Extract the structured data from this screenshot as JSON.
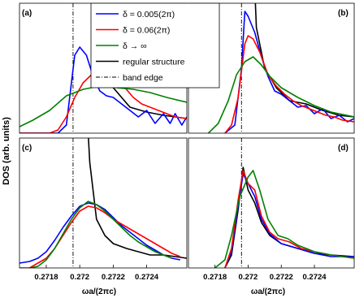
{
  "figure": {
    "ylabel": "DOS (arb. units)",
    "xlabel": "ωa/(2πc)"
  },
  "legend": {
    "position": "top-center",
    "entries": [
      {
        "label": "δ = 0.005(2π)",
        "color": "#0000ff",
        "style": "solid"
      },
      {
        "label": "δ = 0.06(2π)",
        "color": "#ff0000",
        "style": "solid"
      },
      {
        "label": "δ → ∞",
        "color": "#008000",
        "style": "solid"
      },
      {
        "label": "regular structure",
        "color": "#000000",
        "style": "solid"
      },
      {
        "label": "band edge",
        "color": "#000000",
        "style": "dashdot"
      }
    ]
  },
  "chart_data": [
    {
      "panel": "(a)",
      "type": "line",
      "xlim": [
        0.27164,
        0.27264
      ],
      "band_edge": 0.27196,
      "x_ticks": [],
      "y_ticks": [],
      "grid": false,
      "series": [
        {
          "name": "regular structure",
          "color": "#000000",
          "x": [
            0.27205,
            0.27207,
            0.27212,
            0.2722,
            0.2723,
            0.2724,
            0.2725,
            0.27264
          ],
          "y": [
            1.4,
            0.8,
            0.5,
            0.28,
            0.16,
            0.13,
            0.11,
            0.09
          ]
        },
        {
          "name": "δ = 0.005(2π)",
          "color": "#0000ff",
          "x": [
            0.27164,
            0.27187,
            0.27192,
            0.27197,
            0.272,
            0.27204,
            0.27208,
            0.27212,
            0.27216,
            0.2722,
            0.27225,
            0.2723,
            0.27235,
            0.2724,
            0.27245,
            0.2725,
            0.27254,
            0.27257,
            0.27261,
            0.27264
          ],
          "y": [
            0,
            0,
            0.05,
            0.48,
            0.53,
            0.48,
            0.35,
            0.26,
            0.23,
            0.22,
            0.18,
            0.14,
            0.1,
            0.14,
            0.06,
            0.12,
            0.06,
            0.12,
            0.05,
            0.1
          ]
        },
        {
          "name": "δ = 0.06(2π)",
          "color": "#ff0000",
          "x": [
            0.27164,
            0.27182,
            0.27187,
            0.27192,
            0.27197,
            0.27202,
            0.27207,
            0.27212,
            0.27217,
            0.27222,
            0.27227,
            0.27232,
            0.27237,
            0.27242,
            0.27247,
            0.27252,
            0.27257,
            0.27264
          ],
          "y": [
            0,
            0,
            0.02,
            0.1,
            0.22,
            0.31,
            0.36,
            0.37,
            0.36,
            0.33,
            0.28,
            0.22,
            0.18,
            0.16,
            0.14,
            0.12,
            0.1,
            0.09
          ]
        },
        {
          "name": "δ → ∞",
          "color": "#008000",
          "x": [
            0.27164,
            0.27172,
            0.27182,
            0.27192,
            0.27202,
            0.27212,
            0.27222,
            0.27232,
            0.27242,
            0.27252,
            0.27264
          ],
          "y": [
            0.04,
            0.08,
            0.14,
            0.23,
            0.27,
            0.29,
            0.28,
            0.27,
            0.25,
            0.22,
            0.19
          ]
        }
      ]
    },
    {
      "panel": "(b)",
      "type": "line",
      "xlim": [
        0.27164,
        0.27264
      ],
      "band_edge": 0.27196,
      "x_ticks": [],
      "y_ticks": [],
      "grid": false,
      "series": [
        {
          "name": "regular structure",
          "color": "#000000",
          "x": [
            0.27202,
            0.27205,
            0.2721,
            0.27217,
            0.27225,
            0.27235,
            0.27245,
            0.27255,
            0.27264
          ],
          "y": [
            1.4,
            0.65,
            0.4,
            0.28,
            0.2,
            0.18,
            0.14,
            0.11,
            0.1
          ]
        },
        {
          "name": "δ = 0.005(2π)",
          "color": "#0000ff",
          "x": [
            0.27186,
            0.27192,
            0.27196,
            0.27198,
            0.272,
            0.27204,
            0.27208,
            0.27212,
            0.27216,
            0.2722,
            0.27225,
            0.2723,
            0.27235,
            0.2724,
            0.27245,
            0.2725,
            0.27255,
            0.2726,
            0.27264
          ],
          "y": [
            0,
            0.05,
            0.4,
            0.75,
            0.72,
            0.62,
            0.47,
            0.35,
            0.26,
            0.24,
            0.2,
            0.16,
            0.17,
            0.12,
            0.15,
            0.09,
            0.11,
            0.07,
            0.09
          ]
        },
        {
          "name": "δ = 0.06(2π)",
          "color": "#ff0000",
          "x": [
            0.27186,
            0.2719,
            0.27194,
            0.27198,
            0.272,
            0.27203,
            0.27207,
            0.27212,
            0.27217,
            0.27222,
            0.27227,
            0.27232,
            0.27237,
            0.27242,
            0.27247,
            0.27252,
            0.27257,
            0.27264
          ],
          "y": [
            0,
            0.05,
            0.22,
            0.55,
            0.6,
            0.58,
            0.5,
            0.36,
            0.29,
            0.24,
            0.2,
            0.17,
            0.15,
            0.13,
            0.11,
            0.1,
            0.08,
            0.07
          ]
        },
        {
          "name": "δ → ∞",
          "color": "#008000",
          "x": [
            0.27176,
            0.27182,
            0.27188,
            0.27193,
            0.27198,
            0.27203,
            0.27208,
            0.27213,
            0.2722,
            0.2723,
            0.2724,
            0.2725,
            0.27264
          ],
          "y": [
            0,
            0.06,
            0.2,
            0.36,
            0.44,
            0.47,
            0.42,
            0.35,
            0.28,
            0.22,
            0.17,
            0.13,
            0.1
          ]
        }
      ]
    },
    {
      "panel": "(c)",
      "type": "line",
      "xlim": [
        0.27164,
        0.27264
      ],
      "band_edge": 0.27196,
      "x_ticks": [
        "0.2718",
        "0.272",
        "0.2722",
        "0.2724"
      ],
      "x_tick_values": [
        0.2718,
        0.272,
        0.2722,
        0.2724
      ],
      "y_ticks": [],
      "grid": false,
      "series": [
        {
          "name": "regular structure",
          "color": "#000000",
          "x": [
            0.27202,
            0.27206,
            0.2721,
            0.27215,
            0.2722,
            0.27228,
            0.27235,
            0.27242,
            0.2725,
            0.27257,
            0.27264
          ],
          "y": [
            1.4,
            0.65,
            0.3,
            0.2,
            0.15,
            0.12,
            0.1,
            0.08,
            0.08,
            0.07,
            0.06
          ]
        },
        {
          "name": "δ = 0.005(2π)",
          "color": "#0000ff",
          "x": [
            0.27164,
            0.2717,
            0.27175,
            0.2718,
            0.27185,
            0.2719,
            0.27195,
            0.272,
            0.27205,
            0.2721,
            0.27215,
            0.2722,
            0.27225,
            0.2723,
            0.27235,
            0.2724,
            0.27245,
            0.2725,
            0.27255,
            0.2726
          ],
          "y": [
            0.03,
            0.04,
            0.06,
            0.1,
            0.17,
            0.25,
            0.32,
            0.38,
            0.4,
            0.39,
            0.36,
            0.31,
            0.26,
            0.22,
            0.18,
            0.14,
            0.11,
            0.08,
            0.06,
            0.05
          ]
        },
        {
          "name": "δ = 0.06(2π)",
          "color": "#ff0000",
          "x": [
            0.27164,
            0.2717,
            0.27175,
            0.2718,
            0.27185,
            0.2719,
            0.27195,
            0.272,
            0.27205,
            0.2721,
            0.27215,
            0.2722,
            0.27225,
            0.2723,
            0.27235,
            0.2724,
            0.27245,
            0.2725,
            0.27255,
            0.2726
          ],
          "y": [
            0,
            0,
            0.03,
            0.06,
            0.12,
            0.2,
            0.28,
            0.35,
            0.38,
            0.37,
            0.34,
            0.3,
            0.27,
            0.24,
            0.21,
            0.18,
            0.15,
            0.12,
            0.09,
            0.07
          ]
        },
        {
          "name": "δ → ∞",
          "color": "#008000",
          "x": [
            0.2717,
            0.27175,
            0.2718,
            0.27185,
            0.2719,
            0.27195,
            0.272,
            0.27205,
            0.2721,
            0.27215,
            0.2722,
            0.27225,
            0.2723,
            0.27235,
            0.2724,
            0.27245,
            0.2725,
            0.27255
          ],
          "y": [
            0,
            0.01,
            0.05,
            0.12,
            0.21,
            0.3,
            0.37,
            0.41,
            0.39,
            0.35,
            0.3,
            0.25,
            0.2,
            0.16,
            0.13,
            0.1,
            0.08,
            0.06
          ]
        }
      ]
    },
    {
      "panel": "(d)",
      "type": "line",
      "xlim": [
        0.27164,
        0.27264
      ],
      "band_edge": 0.27196,
      "x_ticks": [
        "0.2718",
        "0.272",
        "0.2722",
        "0.2724"
      ],
      "x_tick_values": [
        0.2718,
        0.272,
        0.2722,
        0.2724
      ],
      "y_ticks": [],
      "grid": false,
      "series": [
        {
          "name": "regular structure",
          "color": "#000000",
          "x": [
            0.27186,
            0.2719,
            0.27194,
            0.27197,
            0.272,
            0.27204,
            0.27208,
            0.27213,
            0.2722,
            0.2723,
            0.2724,
            0.2725,
            0.27264
          ],
          "y": [
            0,
            0.08,
            0.36,
            0.62,
            0.48,
            0.4,
            0.28,
            0.2,
            0.15,
            0.12,
            0.09,
            0.08,
            0.07
          ]
        },
        {
          "name": "δ = 0.005(2π)",
          "color": "#0000ff",
          "x": [
            0.27186,
            0.2719,
            0.27194,
            0.27197,
            0.272,
            0.27204,
            0.27208,
            0.27213,
            0.2722,
            0.2723,
            0.2724,
            0.2725,
            0.27264
          ],
          "y": [
            0,
            0.1,
            0.38,
            0.58,
            0.52,
            0.44,
            0.3,
            0.21,
            0.15,
            0.12,
            0.09,
            0.07,
            0.07
          ]
        },
        {
          "name": "δ = 0.06(2π)",
          "color": "#ff0000",
          "x": [
            0.27186,
            0.2719,
            0.27194,
            0.27197,
            0.272,
            0.27204,
            0.27208,
            0.27213,
            0.27218,
            0.27225,
            0.27232,
            0.2724,
            0.2725,
            0.27264
          ],
          "y": [
            0,
            0.12,
            0.42,
            0.6,
            0.52,
            0.48,
            0.32,
            0.22,
            0.18,
            0.16,
            0.12,
            0.1,
            0.08,
            0.06
          ]
        },
        {
          "name": "δ → ∞",
          "color": "#008000",
          "x": [
            0.2718,
            0.27186,
            0.2719,
            0.27195,
            0.272,
            0.27203,
            0.27207,
            0.27212,
            0.27218,
            0.27224,
            0.2723,
            0.2724,
            0.2725,
            0.27264
          ],
          "y": [
            0,
            0.05,
            0.2,
            0.44,
            0.56,
            0.6,
            0.48,
            0.3,
            0.2,
            0.18,
            0.14,
            0.1,
            0.08,
            0.06
          ]
        }
      ]
    }
  ]
}
